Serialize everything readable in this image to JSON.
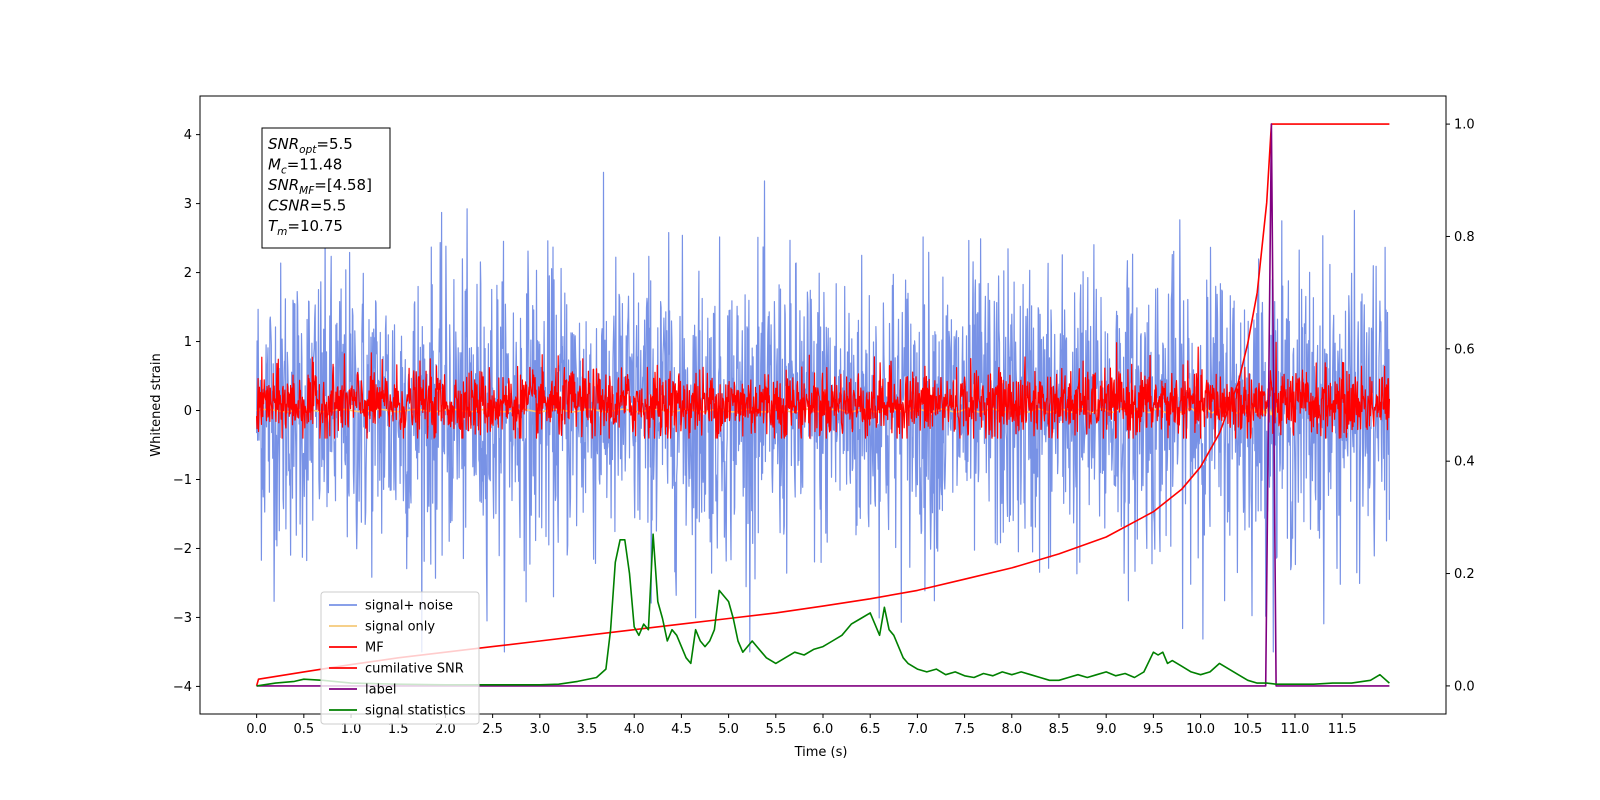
{
  "chart_data": {
    "type": "line",
    "title": "",
    "xlabel": "Time (s)",
    "ylabel": "Whitened strain",
    "y2label": "",
    "xlim": [
      -0.6,
      12.6
    ],
    "ylim": [
      -4.4,
      4.56
    ],
    "y2lim": [
      -0.05,
      1.05
    ],
    "xticks": [
      0.0,
      0.5,
      1.0,
      1.5,
      2.0,
      2.5,
      3.0,
      3.5,
      4.0,
      4.5,
      5.0,
      5.5,
      6.0,
      6.5,
      7.0,
      7.5,
      8.0,
      8.5,
      9.0,
      9.5,
      10.0,
      10.5,
      11.0,
      11.5
    ],
    "xtick_labels": [
      "0.0",
      "0.5",
      "1.0",
      "1.5",
      "2.0",
      "2.5",
      "3.0",
      "3.5",
      "4.0",
      "4.5",
      "5.0",
      "5.5",
      "6.0",
      "6.5",
      "7.0",
      "7.5",
      "8.0",
      "8.5",
      "9.0",
      "9.5",
      "10.0",
      "10.5",
      "11.0",
      "11.5"
    ],
    "yticks": [
      -4,
      -3,
      -2,
      -1,
      0,
      1,
      2,
      3,
      4
    ],
    "ytick_labels": [
      "−4",
      "−3",
      "−2",
      "−1",
      "0",
      "1",
      "2",
      "3",
      "4"
    ],
    "y2ticks": [
      0.0,
      0.2,
      0.4,
      0.6,
      0.8,
      1.0
    ],
    "y2tick_labels": [
      "0.0",
      "0.2",
      "0.4",
      "0.6",
      "0.8",
      "1.0"
    ],
    "grid": false,
    "legend_position": "bottom-left",
    "annotation": [
      {
        "sym": "SNR",
        "sub": "opt",
        "val": "=5.5"
      },
      {
        "sym": "M",
        "sub": "c",
        "val": "=11.48"
      },
      {
        "sym": "SNR",
        "sub": "MF",
        "val": "=[4.58]"
      },
      {
        "sym": "CSNR",
        "sub": "",
        "val": "=5.5"
      },
      {
        "sym": "T",
        "sub": "m",
        "val": "=10.75"
      }
    ],
    "series": [
      {
        "name": "signal+ noise",
        "axis": "left",
        "color": "#7892e6",
        "style": "noise",
        "x_range": [
          0.0,
          12.0
        ],
        "typical_band": [
          -1.7,
          1.7
        ],
        "extremes": [
          -3.5,
          4.2
        ]
      },
      {
        "name": "signal only",
        "axis": "left",
        "color": "#f5c97a",
        "style": "chirp",
        "x_range": [
          0.0,
          10.8
        ],
        "peak": 0.4
      },
      {
        "name": "MF",
        "axis": "left",
        "color": "#ff0000",
        "style": "noise",
        "x_range": [
          0.0,
          12.0
        ],
        "typical_band": [
          -0.3,
          0.5
        ],
        "extremes": [
          -0.4,
          1.0
        ]
      },
      {
        "name": "cumilative SNR",
        "axis": "right",
        "color": "#ff0000",
        "style": "line",
        "x": [
          0.0,
          0.02,
          0.5,
          1.0,
          1.5,
          2.0,
          2.5,
          3.0,
          3.5,
          4.0,
          4.5,
          5.0,
          5.5,
          6.0,
          6.5,
          7.0,
          7.5,
          8.0,
          8.5,
          9.0,
          9.5,
          9.8,
          10.0,
          10.2,
          10.4,
          10.5,
          10.6,
          10.7,
          10.75,
          11.0,
          12.0
        ],
        "y": [
          0.0,
          0.012,
          0.025,
          0.038,
          0.05,
          0.06,
          0.07,
          0.08,
          0.09,
          0.1,
          0.11,
          0.12,
          0.13,
          0.142,
          0.155,
          0.17,
          0.19,
          0.21,
          0.235,
          0.265,
          0.31,
          0.35,
          0.39,
          0.45,
          0.54,
          0.61,
          0.7,
          0.86,
          1.0,
          1.0,
          1.0
        ]
      },
      {
        "name": "label",
        "axis": "right",
        "color": "#800080",
        "style": "line",
        "x": [
          0.0,
          10.69,
          10.75,
          10.8,
          12.0
        ],
        "y": [
          0.0,
          0.0,
          1.0,
          0.0,
          0.0
        ]
      },
      {
        "name": "signal statistics",
        "axis": "right",
        "color": "#008000",
        "style": "line",
        "x": [
          0.0,
          0.2,
          0.4,
          0.5,
          0.7,
          1.0,
          1.5,
          2.0,
          2.5,
          3.0,
          3.2,
          3.4,
          3.6,
          3.7,
          3.75,
          3.8,
          3.85,
          3.9,
          3.95,
          4.0,
          4.05,
          4.1,
          4.15,
          4.2,
          4.25,
          4.3,
          4.35,
          4.4,
          4.45,
          4.5,
          4.55,
          4.6,
          4.65,
          4.7,
          4.75,
          4.8,
          4.85,
          4.9,
          4.95,
          5.0,
          5.05,
          5.1,
          5.15,
          5.2,
          5.25,
          5.3,
          5.35,
          5.4,
          5.5,
          5.6,
          5.7,
          5.8,
          5.9,
          6.0,
          6.1,
          6.2,
          6.3,
          6.4,
          6.5,
          6.55,
          6.6,
          6.65,
          6.7,
          6.75,
          6.8,
          6.85,
          6.9,
          7.0,
          7.1,
          7.2,
          7.3,
          7.4,
          7.5,
          7.6,
          7.7,
          7.8,
          7.9,
          8.0,
          8.1,
          8.2,
          8.3,
          8.4,
          8.5,
          8.6,
          8.7,
          8.8,
          8.9,
          9.0,
          9.1,
          9.2,
          9.3,
          9.4,
          9.5,
          9.55,
          9.6,
          9.65,
          9.7,
          9.8,
          9.9,
          10.0,
          10.1,
          10.2,
          10.3,
          10.4,
          10.5,
          10.6,
          10.7,
          10.8,
          11.0,
          11.2,
          11.4,
          11.6,
          11.8,
          11.9,
          12.0
        ],
        "y": [
          0.0,
          0.005,
          0.008,
          0.012,
          0.01,
          0.005,
          0.003,
          0.002,
          0.002,
          0.002,
          0.003,
          0.008,
          0.015,
          0.03,
          0.1,
          0.22,
          0.26,
          0.26,
          0.2,
          0.105,
          0.09,
          0.11,
          0.1,
          0.27,
          0.15,
          0.12,
          0.08,
          0.1,
          0.09,
          0.07,
          0.05,
          0.04,
          0.1,
          0.08,
          0.07,
          0.08,
          0.1,
          0.17,
          0.16,
          0.15,
          0.12,
          0.08,
          0.06,
          0.07,
          0.08,
          0.07,
          0.06,
          0.05,
          0.04,
          0.05,
          0.06,
          0.055,
          0.065,
          0.07,
          0.08,
          0.09,
          0.11,
          0.12,
          0.13,
          0.11,
          0.09,
          0.14,
          0.1,
          0.09,
          0.07,
          0.05,
          0.04,
          0.03,
          0.025,
          0.03,
          0.02,
          0.025,
          0.018,
          0.015,
          0.022,
          0.018,
          0.025,
          0.02,
          0.025,
          0.02,
          0.015,
          0.01,
          0.01,
          0.015,
          0.02,
          0.015,
          0.02,
          0.025,
          0.018,
          0.022,
          0.015,
          0.025,
          0.06,
          0.055,
          0.06,
          0.04,
          0.045,
          0.035,
          0.025,
          0.02,
          0.025,
          0.04,
          0.03,
          0.02,
          0.01,
          0.005,
          0.005,
          0.003,
          0.003,
          0.003,
          0.005,
          0.005,
          0.01,
          0.02,
          0.005
        ]
      }
    ]
  }
}
